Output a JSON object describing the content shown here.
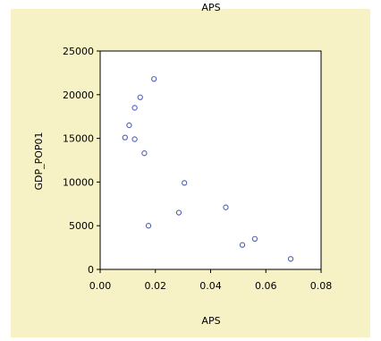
{
  "chart_data": {
    "type": "scatter",
    "title": "APS",
    "xlabel": "APS",
    "ylabel": "GDP_POP01",
    "xlim": [
      0,
      0.08
    ],
    "ylim": [
      0,
      25000
    ],
    "xticks": [
      "0.00",
      "0.02",
      "0.04",
      "0.06",
      "0.08"
    ],
    "yticks": [
      "0",
      "5000",
      "10000",
      "15000",
      "20000",
      "25000"
    ],
    "grid": false,
    "marker_color": "#4f5fb3",
    "points": [
      {
        "x": 0.0195,
        "y": 21800
      },
      {
        "x": 0.0145,
        "y": 19700
      },
      {
        "x": 0.0125,
        "y": 18500
      },
      {
        "x": 0.0105,
        "y": 16500
      },
      {
        "x": 0.009,
        "y": 15100
      },
      {
        "x": 0.0125,
        "y": 14900
      },
      {
        "x": 0.016,
        "y": 13300
      },
      {
        "x": 0.0305,
        "y": 9900
      },
      {
        "x": 0.0455,
        "y": 7100
      },
      {
        "x": 0.0285,
        "y": 6500
      },
      {
        "x": 0.0175,
        "y": 5000
      },
      {
        "x": 0.056,
        "y": 3500
      },
      {
        "x": 0.0515,
        "y": 2800
      },
      {
        "x": 0.069,
        "y": 1200
      }
    ]
  }
}
